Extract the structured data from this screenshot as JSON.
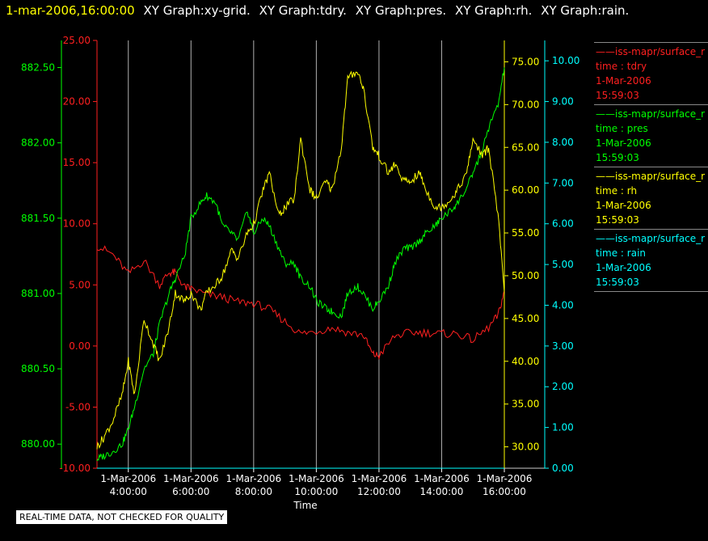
{
  "header": {
    "timestamp": "1-mar-2006,16:00:00",
    "graph_titles": [
      "XY Graph:xy-grid.",
      "XY Graph:tdry.",
      "XY Graph:pres.",
      "XY Graph:rh.",
      "XY Graph:rain."
    ]
  },
  "notice": "REAL-TIME DATA, NOT CHECKED FOR QUALITY",
  "colors": {
    "tdry": "#ff2020",
    "pres": "#00ff00",
    "rh": "#ffff00",
    "rain": "#00ffff",
    "grid": "#b0b0b0",
    "background": "#000000"
  },
  "legend": [
    {
      "series": "tdry",
      "source": "iss-mapr/surface_r",
      "var": "time : tdry",
      "date": "1-Mar-2006",
      "time": "15:59:03"
    },
    {
      "series": "pres",
      "source": "iss-mapr/surface_r",
      "var": "time : pres",
      "date": "1-Mar-2006",
      "time": "15:59:03"
    },
    {
      "series": "rh",
      "source": "iss-mapr/surface_r",
      "var": "time : rh",
      "date": "1-Mar-2006",
      "time": "15:59:03"
    },
    {
      "series": "rain",
      "source": "iss-mapr/surface_r",
      "var": "time : rain",
      "date": "1-Mar-2006",
      "time": "15:59:03"
    }
  ],
  "chart_data": {
    "type": "line",
    "xlabel": "Time",
    "xlim": [
      3.0,
      16.0
    ],
    "x_ticks": [
      {
        "x": 4,
        "date": "1-Mar-2006",
        "time": "4:00:00"
      },
      {
        "x": 6,
        "date": "1-Mar-2006",
        "time": "6:00:00"
      },
      {
        "x": 8,
        "date": "1-Mar-2006",
        "time": "8:00:00"
      },
      {
        "x": 10,
        "date": "1-Mar-2006",
        "time": "10:00:00"
      },
      {
        "x": 12,
        "date": "1-Mar-2006",
        "time": "12:00:00"
      },
      {
        "x": 14,
        "date": "1-Mar-2006",
        "time": "14:00:00"
      },
      {
        "x": 16,
        "date": "1-Mar-2006",
        "time": "16:00:00"
      }
    ],
    "grid": "vertical",
    "axes": {
      "pres": {
        "ylim": [
          879.84,
          882.68
        ],
        "ticks": [
          "880.00",
          "880.50",
          "881.00",
          "881.50",
          "882.00",
          "882.50"
        ],
        "tick_values": [
          880.0,
          880.5,
          881.0,
          881.5,
          882.0,
          882.5
        ]
      },
      "tdry": {
        "ylim": [
          -10,
          25
        ],
        "ticks": [
          "-10.00",
          "-5.00",
          "0.00",
          "5.00",
          "10.00",
          "15.00",
          "20.00",
          "25.00"
        ],
        "tick_values": [
          -10,
          -5,
          0,
          5,
          10,
          15,
          20,
          25
        ]
      },
      "rh": {
        "ylim": [
          27.5,
          77.5
        ],
        "ticks": [
          "30.00",
          "35.00",
          "40.00",
          "45.00",
          "50.00",
          "55.00",
          "60.00",
          "65.00",
          "70.00",
          "75.00"
        ],
        "tick_values": [
          30,
          35,
          40,
          45,
          50,
          55,
          60,
          65,
          70,
          75
        ]
      },
      "rain": {
        "ylim": [
          0,
          10.5
        ],
        "ticks": [
          "0.00",
          "1.00",
          "2.00",
          "3.00",
          "4.00",
          "5.00",
          "6.00",
          "7.00",
          "8.00",
          "9.00",
          "10.00"
        ],
        "tick_values": [
          0,
          1,
          2,
          3,
          4,
          5,
          6,
          7,
          8,
          9,
          10
        ]
      }
    },
    "series": [
      {
        "name": "tdry",
        "x": [
          3.0,
          3.5,
          4.0,
          4.5,
          5.0,
          5.3,
          5.5,
          5.8,
          6.0,
          6.5,
          7.0,
          7.5,
          8.0,
          8.5,
          9.0,
          9.5,
          10.0,
          10.5,
          11.0,
          11.5,
          11.8,
          12.0,
          12.5,
          13.0,
          13.5,
          14.0,
          14.5,
          15.0,
          15.5,
          15.8,
          16.0
        ],
        "y": [
          8.2,
          7.5,
          5.9,
          7.0,
          5.0,
          6.0,
          6.0,
          4.8,
          4.7,
          4.2,
          4.0,
          3.6,
          3.5,
          3.0,
          2.0,
          1.0,
          1.2,
          1.5,
          1.1,
          0.9,
          -0.7,
          -0.8,
          0.8,
          1.1,
          1.1,
          1.0,
          1.0,
          0.5,
          1.5,
          2.5,
          4.5
        ]
      },
      {
        "name": "pres",
        "x": [
          3.0,
          3.2,
          3.5,
          3.8,
          4.0,
          4.2,
          4.5,
          4.8,
          5.0,
          5.3,
          5.5,
          5.8,
          6.0,
          6.3,
          6.5,
          6.8,
          7.0,
          7.3,
          7.5,
          7.8,
          8.0,
          8.3,
          8.5,
          8.8,
          9.0,
          9.3,
          9.5,
          9.8,
          10.0,
          10.3,
          10.5,
          10.8,
          11.0,
          11.3,
          11.5,
          11.8,
          12.0,
          12.3,
          12.5,
          12.8,
          13.0,
          13.3,
          13.5,
          13.8,
          14.0,
          14.3,
          14.5,
          14.8,
          15.0,
          15.3,
          15.5,
          15.8,
          16.0
        ],
        "y": [
          879.9,
          879.92,
          879.95,
          880.0,
          880.1,
          880.25,
          880.5,
          880.6,
          880.8,
          881.0,
          881.1,
          881.25,
          881.5,
          881.6,
          881.65,
          881.6,
          881.45,
          881.4,
          881.35,
          881.55,
          881.4,
          881.5,
          881.45,
          881.3,
          881.2,
          881.2,
          881.1,
          881.05,
          880.95,
          880.9,
          880.88,
          880.85,
          881.0,
          881.05,
          881.0,
          880.9,
          880.95,
          881.05,
          881.2,
          881.3,
          881.3,
          881.35,
          881.4,
          881.45,
          881.5,
          881.55,
          881.6,
          881.7,
          881.8,
          881.95,
          882.1,
          882.25,
          882.5
        ]
      },
      {
        "name": "rh",
        "x": [
          3.0,
          3.2,
          3.5,
          3.8,
          4.0,
          4.2,
          4.5,
          4.8,
          5.0,
          5.3,
          5.5,
          5.8,
          6.0,
          6.3,
          6.5,
          6.8,
          7.0,
          7.3,
          7.5,
          7.8,
          8.0,
          8.3,
          8.5,
          8.8,
          9.0,
          9.3,
          9.5,
          9.8,
          10.0,
          10.3,
          10.5,
          10.8,
          11.0,
          11.3,
          11.5,
          11.8,
          12.0,
          12.3,
          12.5,
          12.8,
          13.0,
          13.3,
          13.5,
          13.8,
          14.0,
          14.3,
          14.5,
          14.8,
          15.0,
          15.3,
          15.5,
          15.8,
          16.0
        ],
        "y": [
          30,
          31,
          33,
          36,
          40,
          36,
          45,
          42,
          40,
          44,
          48,
          47,
          48,
          46,
          48,
          49,
          50,
          53,
          52,
          55,
          56,
          60,
          62,
          57,
          58,
          59,
          66,
          60,
          59,
          61,
          60,
          65,
          73,
          74,
          72,
          65,
          64,
          62,
          63,
          61,
          61,
          62,
          60,
          58,
          58,
          59,
          60,
          62,
          66,
          64,
          65,
          57,
          48
        ]
      },
      {
        "name": "rain",
        "x": [
          3.0,
          16.0
        ],
        "y": [
          0.0,
          0.0
        ]
      }
    ]
  }
}
